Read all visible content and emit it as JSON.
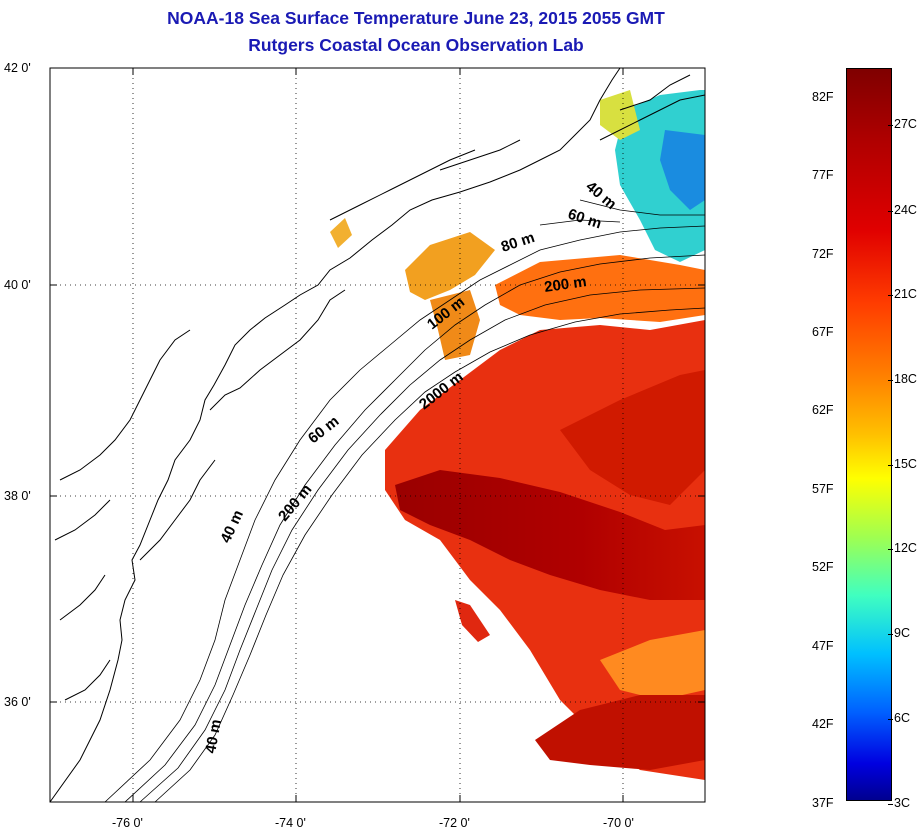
{
  "title": {
    "line1": "NOAA-18 Sea Surface Temperature June 23, 2015 2055 GMT",
    "line2": "Rutgers Coastal Ocean Observation Lab"
  },
  "map": {
    "lat_labels": [
      "42 0'",
      "40 0'",
      "38 0'",
      "36 0'"
    ],
    "lon_labels": [
      "-76 0'",
      "-74 0'",
      "-72 0'",
      "-70 0'"
    ],
    "contour_labels": [
      "40 m",
      "60 m",
      "80 m",
      "200 m",
      "100 m",
      "2000 m",
      "60 m",
      "200 m",
      "40 m",
      "40 m"
    ]
  },
  "colorbar": {
    "fahrenheit": [
      "82F",
      "77F",
      "72F",
      "67F",
      "62F",
      "57F",
      "52F",
      "47F",
      "42F",
      "37F"
    ],
    "celsius": [
      "27C",
      "24C",
      "21C",
      "18C",
      "15C",
      "12C",
      "9C",
      "6C",
      "3C"
    ],
    "colors": [
      "#7f0000",
      "#e00000",
      "#ff8000",
      "#ffff00",
      "#40ffc0",
      "#00c0ff",
      "#0000e0",
      "#00008f"
    ]
  }
}
